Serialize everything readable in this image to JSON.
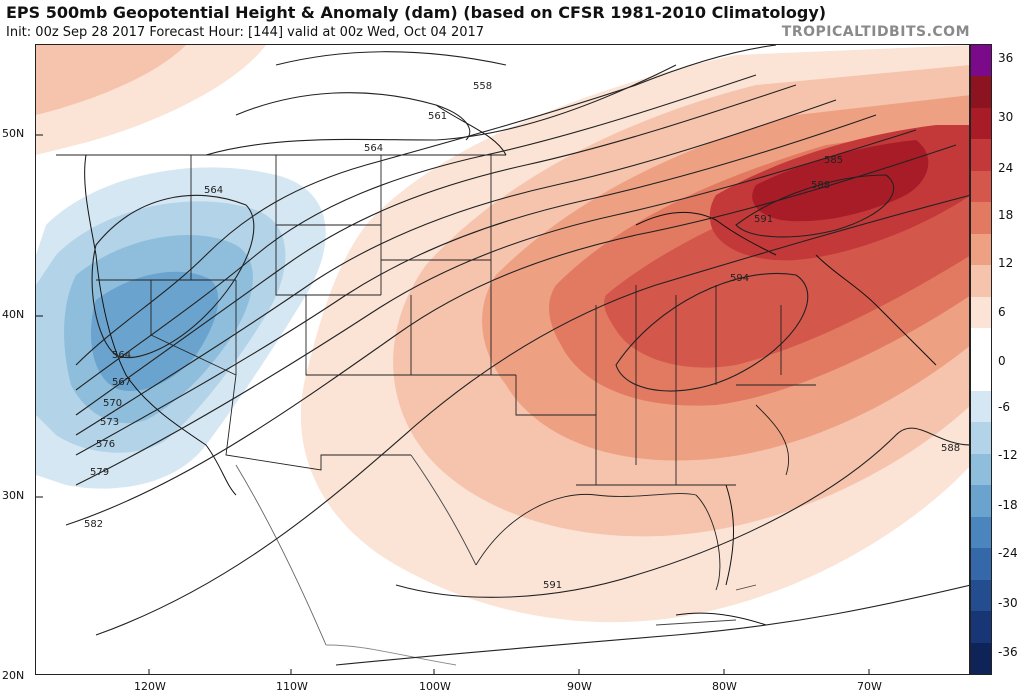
{
  "header": {
    "title": "EPS 500mb Geopotential Height & Anomaly (dam) (based on CFSR 1981-2010 Climatology)",
    "subtitle": "Init: 00z Sep 28 2017   Forecast Hour: [144]   valid at 00z Wed, Oct 04 2017",
    "brand": "TROPICALTIDBITS.COM"
  },
  "axes": {
    "lat_labels": [
      "50N",
      "40N",
      "30N",
      "20N"
    ],
    "lon_labels": [
      "120W",
      "110W",
      "100W",
      "90W",
      "80W",
      "70W"
    ]
  },
  "contour_labels": [
    "558",
    "561",
    "564",
    "564",
    "564",
    "567",
    "570",
    "573",
    "576",
    "579",
    "582",
    "585",
    "588",
    "591",
    "594",
    "588",
    "591"
  ],
  "colorbar": {
    "ticks": [
      "36",
      "30",
      "24",
      "18",
      "12",
      "6",
      "0",
      "-6",
      "-12",
      "-18",
      "-24",
      "-30",
      "-36"
    ],
    "colors": [
      "#7a0a8a",
      "#8c1420",
      "#a81c28",
      "#c3393a",
      "#d4574b",
      "#e27a62",
      "#eea083",
      "#f6c4ad",
      "#fbe3d6",
      "#ffffff",
      "#ffffff",
      "#d5e7f2",
      "#b3d3e8",
      "#8fbedc",
      "#6aa4ce",
      "#4a86bd",
      "#3468a8",
      "#244d8f",
      "#183676",
      "#0e2358"
    ]
  }
}
